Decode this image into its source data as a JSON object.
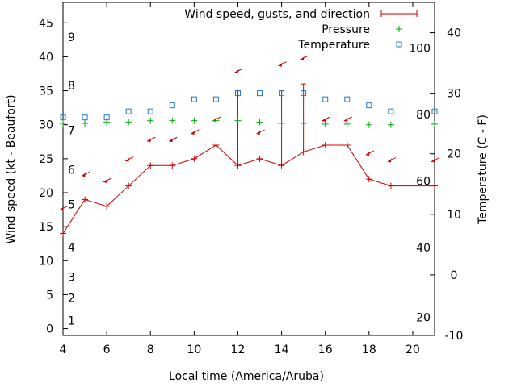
{
  "chart_data": {
    "type": "line",
    "xlabel": "Local time (America/Aruba)",
    "ylabel_left": "Wind speed (kt - Beaufort)",
    "ylabel_right": "Temperature (C - F)",
    "x_range": [
      4,
      21
    ],
    "y_left_range": [
      -1,
      48
    ],
    "y_right_range": [
      -10,
      45
    ],
    "x_ticks": [
      4,
      6,
      8,
      10,
      12,
      14,
      16,
      18,
      20
    ],
    "y_left_ticks": [
      0,
      5,
      10,
      15,
      20,
      25,
      30,
      35,
      40,
      45
    ],
    "y_right_ticks": [
      -10,
      0,
      10,
      20,
      30,
      40
    ],
    "beaufort_labels": [
      {
        "text": "1",
        "y": 1.2
      },
      {
        "text": "2",
        "y": 4.5
      },
      {
        "text": "3",
        "y": 7.6
      },
      {
        "text": "4",
        "y": 12.0
      },
      {
        "text": "5",
        "y": 18.3
      },
      {
        "text": "6",
        "y": 23.4
      },
      {
        "text": "7",
        "y": 29.2
      },
      {
        "text": "8",
        "y": 35.8
      },
      {
        "text": "9",
        "y": 42.9
      }
    ],
    "fahrenheit_labels": [
      {
        "text": "20",
        "y": -7
      },
      {
        "text": "40",
        "y": 4.5
      },
      {
        "text": "60",
        "y": 15.5
      },
      {
        "text": "80",
        "y": 26.5
      },
      {
        "text": "100",
        "y": 37.5
      }
    ],
    "legend": [
      {
        "name": "Wind speed, gusts, and direction",
        "color": "#cc0000",
        "marker": "plus-line"
      },
      {
        "name": "Pressure",
        "color": "#00aa00",
        "marker": "plus"
      },
      {
        "name": "Temperature",
        "color": "#1f77c9",
        "marker": "square"
      }
    ],
    "series": [
      {
        "name": "Wind speed, gusts, and direction",
        "color": "#cc0000",
        "x": [
          4,
          5,
          6,
          7,
          8,
          9,
          10,
          11,
          12,
          13,
          14,
          15,
          16,
          17,
          18,
          19,
          21
        ],
        "values": [
          14,
          19,
          18,
          21,
          24,
          24,
          25,
          27,
          24,
          25,
          24,
          26,
          27,
          27,
          22,
          21,
          21
        ],
        "gusts": [
          {
            "x": 12,
            "value": 35
          },
          {
            "x": 14,
            "value": 35
          },
          {
            "x": 15,
            "value": 36
          }
        ]
      },
      {
        "name": "Pressure",
        "color": "#00aa00",
        "x": [
          4,
          5,
          6,
          7,
          8,
          9,
          10,
          11,
          12,
          13,
          14,
          15,
          16,
          17,
          18,
          19,
          21
        ],
        "values": [
          30.2,
          30.2,
          30.4,
          30.4,
          30.6,
          30.6,
          30.6,
          30.6,
          30.6,
          30.4,
          30.2,
          30.2,
          30.1,
          30.1,
          30.0,
          30.0,
          30.1
        ]
      },
      {
        "name": "Temperature",
        "color": "#1f77c9",
        "x": [
          4,
          5,
          6,
          7,
          8,
          9,
          10,
          11,
          12,
          13,
          14,
          15,
          16,
          17,
          18,
          19,
          21
        ],
        "values": [
          26,
          26,
          26,
          27,
          27,
          28,
          29,
          29,
          30,
          30,
          30,
          30,
          29,
          29,
          28,
          27,
          27
        ]
      }
    ],
    "direction_arrows": [
      {
        "x": 4,
        "y": 17.7
      },
      {
        "x": 5,
        "y": 22.7
      },
      {
        "x": 6,
        "y": 21.8
      },
      {
        "x": 7,
        "y": 24.9
      },
      {
        "x": 8,
        "y": 27.8
      },
      {
        "x": 9,
        "y": 27.8
      },
      {
        "x": 10,
        "y": 28.9
      },
      {
        "x": 11,
        "y": 30.8
      },
      {
        "x": 12,
        "y": 37.9
      },
      {
        "x": 13,
        "y": 28.9
      },
      {
        "x": 14,
        "y": 38.9
      },
      {
        "x": 15,
        "y": 39.8
      },
      {
        "x": 16,
        "y": 30.8
      },
      {
        "x": 17,
        "y": 30.8
      },
      {
        "x": 18,
        "y": 25.8
      },
      {
        "x": 19,
        "y": 24.8
      },
      {
        "x": 21,
        "y": 24.8
      }
    ]
  }
}
